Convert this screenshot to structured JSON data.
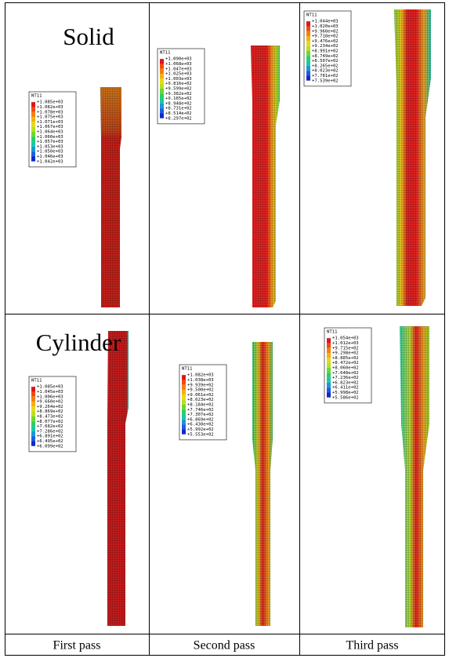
{
  "row_labels": [
    "Solid",
    "Cylinder"
  ],
  "captions": [
    "First pass",
    "Second pass",
    "Third pass"
  ],
  "panels": [
    {
      "legend_title": "NT11",
      "values": [
        "+1.085e+03",
        "+1.082e+03",
        "+1.078e+03",
        "+1.075e+03",
        "+1.071e+03",
        "+1.067e+03",
        "+1.064e+03",
        "+1.060e+03",
        "+1.057e+03",
        "+1.053e+03",
        "+1.050e+03",
        "+1.046e+03",
        "+1.042e+03"
      ]
    },
    {
      "legend_title": "NT11",
      "values": [
        "+1.090e+03",
        "+1.068e+03",
        "+1.047e+03",
        "+1.025e+03",
        "+1.003e+03",
        "+9.816e+02",
        "+9.599e+02",
        "+9.382e+02",
        "+9.165e+02",
        "+8.948e+02",
        "+8.731e+02",
        "+8.514e+02",
        "+8.297e+02"
      ]
    },
    {
      "legend_title": "NT11",
      "values": [
        "+1.044e+03",
        "+1.020e+03",
        "+9.960e+02",
        "+9.718e+02",
        "+9.476e+02",
        "+9.234e+02",
        "+8.991e+02",
        "+8.749e+02",
        "+8.507e+02",
        "+8.265e+02",
        "+8.023e+02",
        "+7.781e+02",
        "+7.539e+02"
      ]
    },
    {
      "legend_title": "NT11",
      "values": [
        "+1.085e+03",
        "+1.045e+03",
        "+1.006e+03",
        "+9.660e+02",
        "+9.264e+02",
        "+8.869e+02",
        "+8.473e+02",
        "+8.077e+02",
        "+7.682e+02",
        "+7.286e+02",
        "+6.891e+02",
        "+6.495e+02",
        "+6.099e+02"
      ]
    },
    {
      "legend_title": "NT11",
      "values": [
        "+1.082e+03",
        "+1.038e+03",
        "+9.939e+02",
        "+9.500e+02",
        "+9.061e+02",
        "+8.623e+02",
        "+8.184e+02",
        "+7.746e+02",
        "+7.307e+02",
        "+6.869e+02",
        "+6.430e+02",
        "+5.992e+02",
        "+5.553e+02"
      ]
    },
    {
      "legend_title": "NT11",
      "values": [
        "+1.054e+03",
        "+1.012e+03",
        "+9.715e+02",
        "+9.298e+02",
        "+8.885e+02",
        "+8.472e+02",
        "+8.060e+02",
        "+7.648e+02",
        "+7.236e+02",
        "+6.823e+02",
        "+6.411e+02",
        "+5.998e+02",
        "+5.586e+02"
      ]
    }
  ]
}
